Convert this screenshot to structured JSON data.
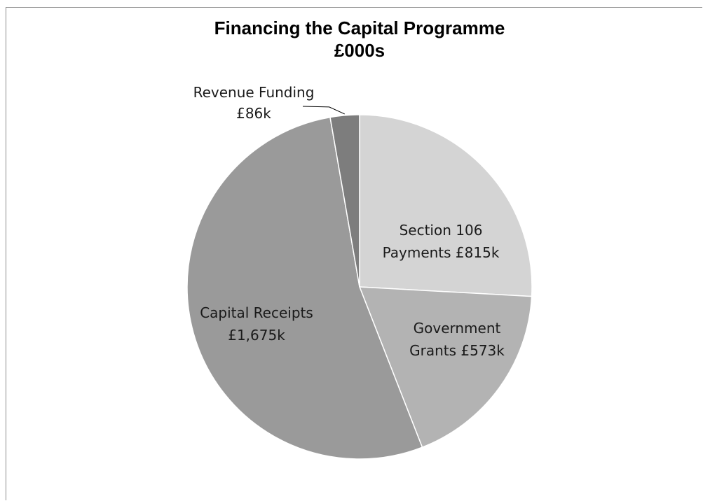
{
  "chart_data": {
    "type": "pie",
    "title": "Financing the Capital Programme",
    "subtitle": "£000s",
    "units": "£000s",
    "slices": [
      {
        "name": "Section 106 Payments",
        "value": 815,
        "label_lines": [
          "Section 106",
          "Payments £815k"
        ],
        "color": "#d4d4d4"
      },
      {
        "name": "Government Grants",
        "value": 573,
        "label_lines": [
          "Government",
          "Grants £573k"
        ],
        "color": "#b3b3b3"
      },
      {
        "name": "Capital Receipts",
        "value": 1675,
        "label_lines": [
          "Capital Receipts",
          "£1,675k"
        ],
        "color": "#9a9a9a"
      },
      {
        "name": "Revenue Funding",
        "value": 86,
        "label_lines": [
          "Revenue Funding",
          "£86k"
        ],
        "color": "#7d7d7d"
      }
    ],
    "legend": "none",
    "start_angle": "12 o'clock",
    "direction": "clockwise"
  }
}
